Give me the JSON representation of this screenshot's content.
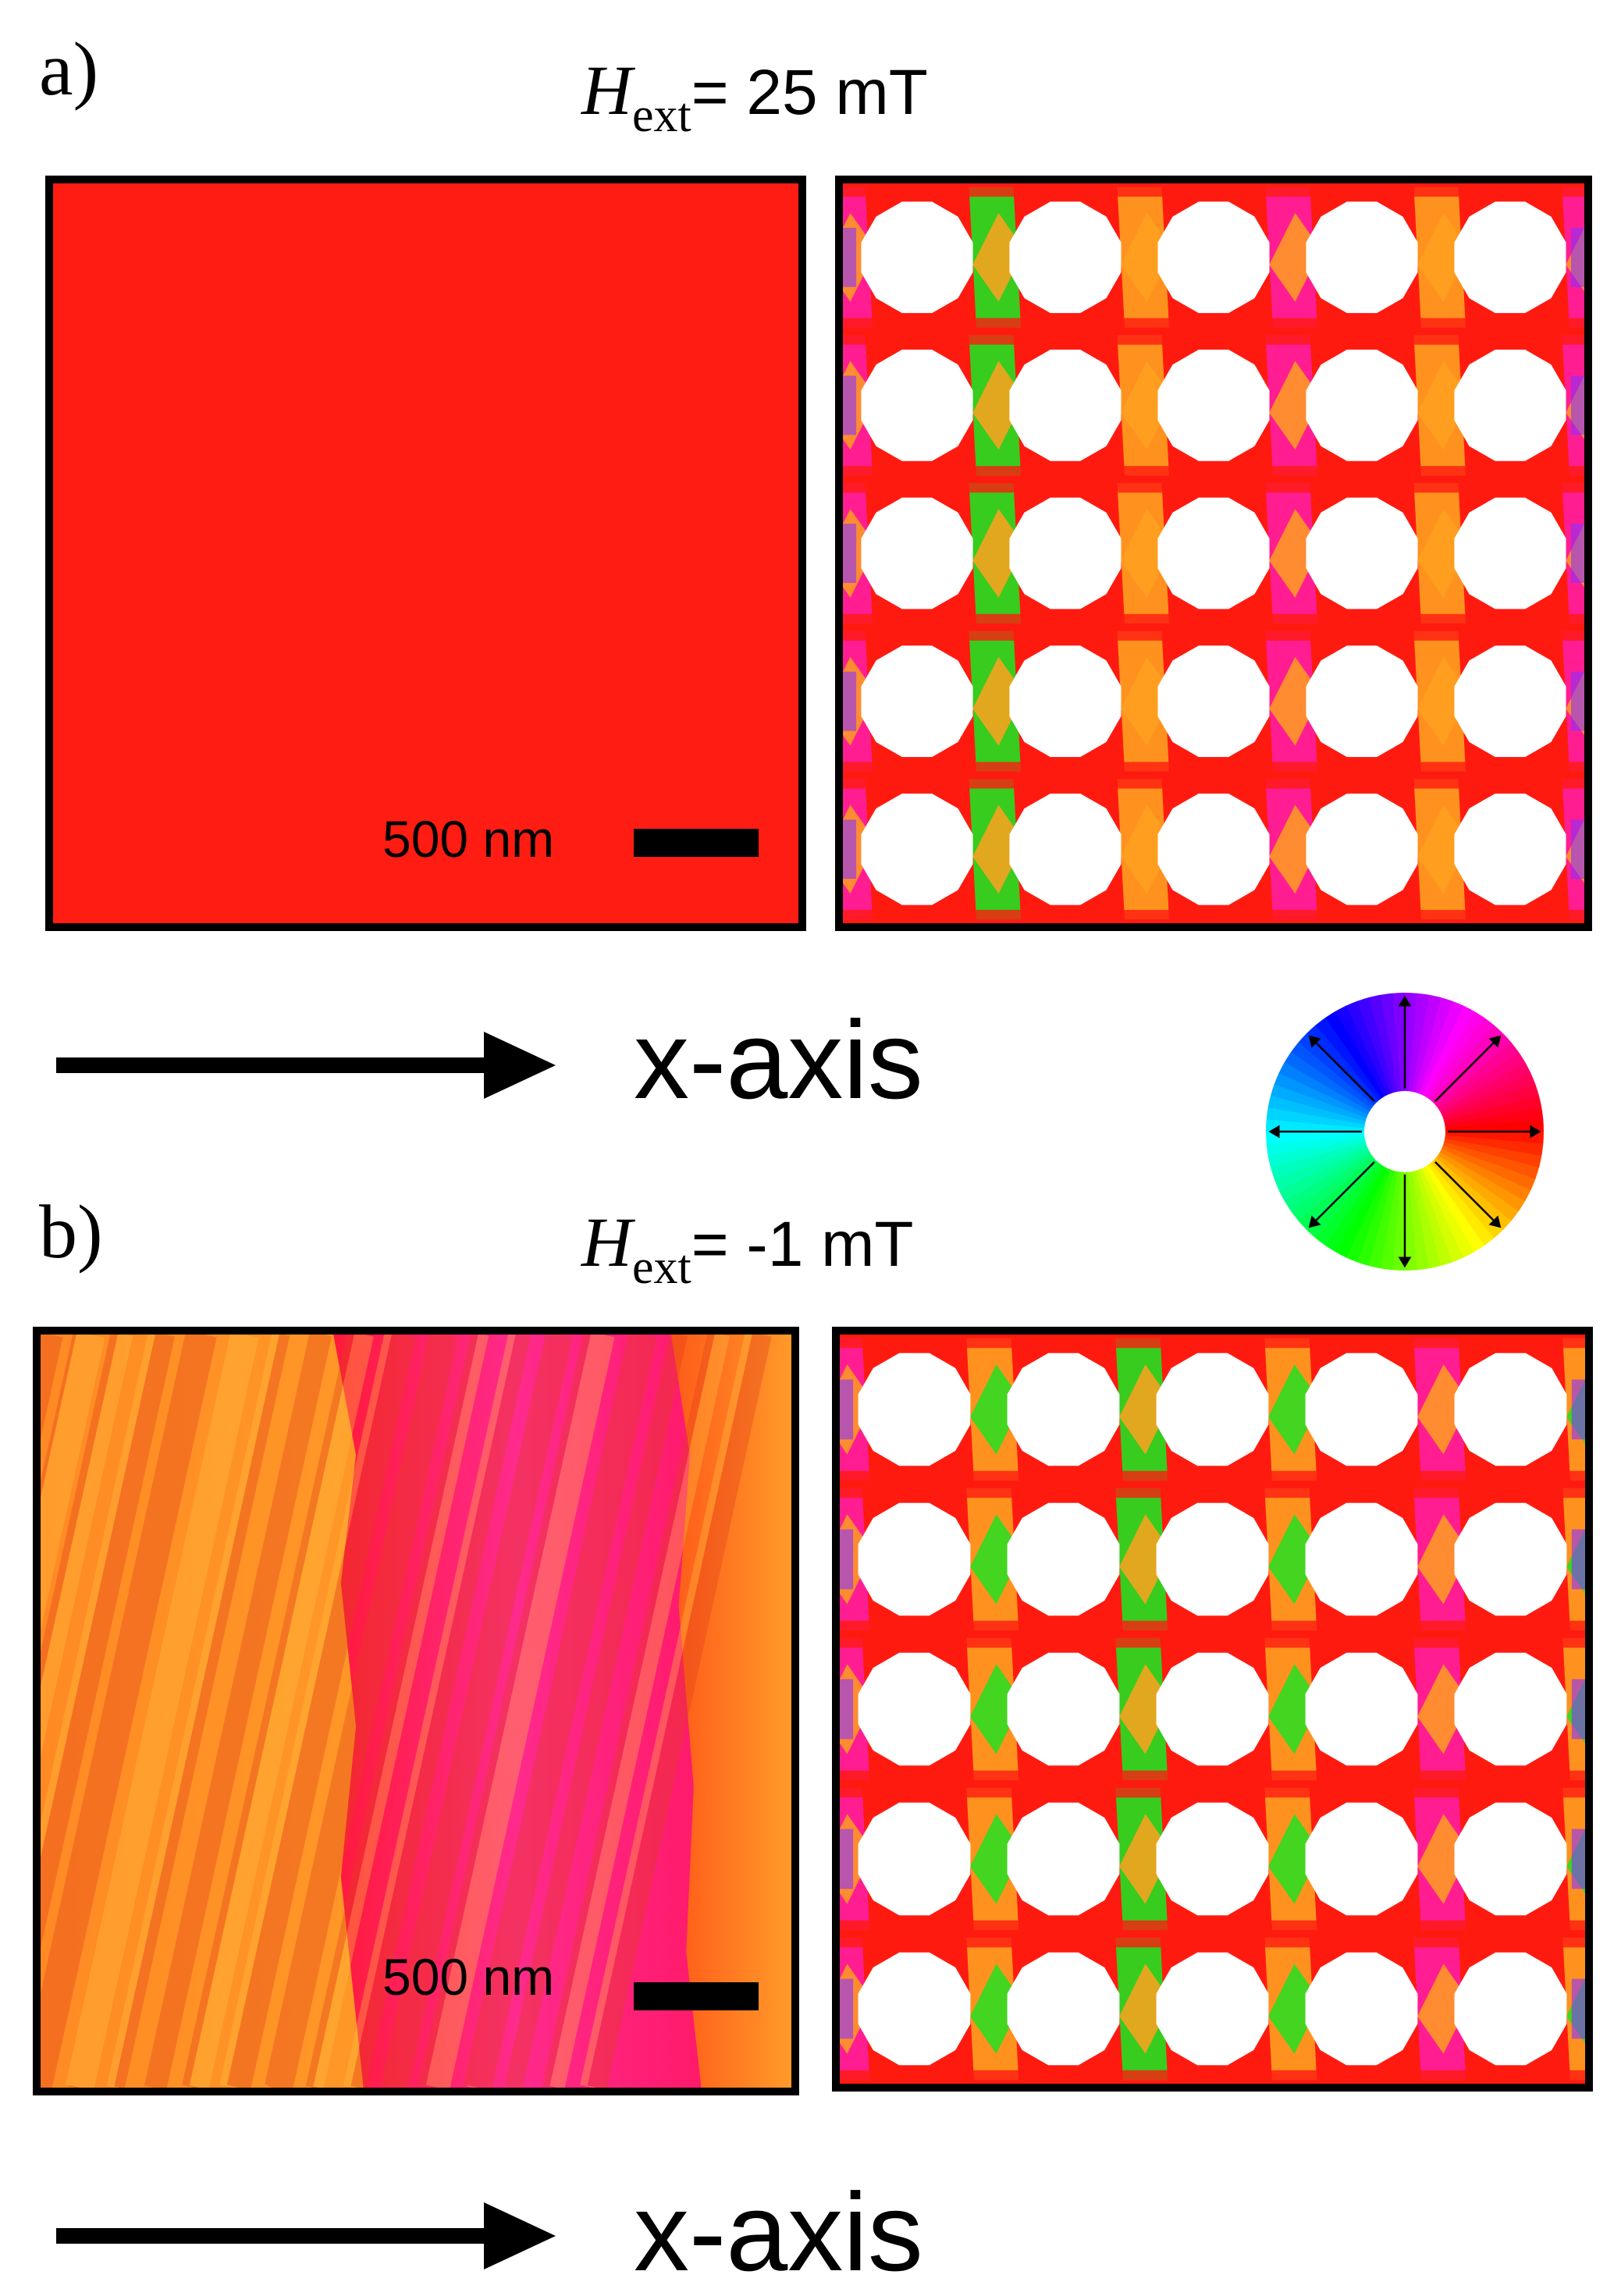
{
  "panels": [
    {
      "label": "a)",
      "field_symbol": "H",
      "field_subscript": "ext",
      "field_value": "= 25 mT",
      "scale_label": "500 nm",
      "axis_label": "x-axis"
    },
    {
      "label": "b)",
      "field_symbol": "H",
      "field_subscript": "ext",
      "field_value": "= -1 mT",
      "scale_label": "500 nm",
      "axis_label": "x-axis"
    }
  ],
  "colors": {
    "uniform_red": "#ff1a10",
    "orange": "#ffa020",
    "magenta": "#ff1ea0",
    "green": "#22e020",
    "violet": "#8830ff",
    "hole": "#ffffff"
  },
  "color_wheel": {
    "name": "magnetization-direction-color-wheel"
  }
}
